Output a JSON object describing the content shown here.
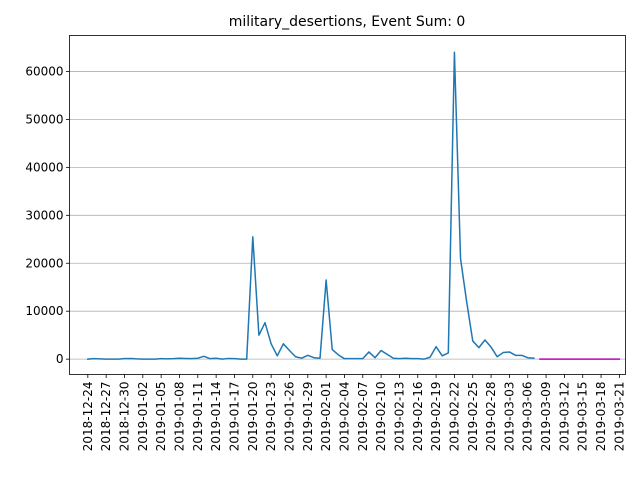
{
  "chart_data": {
    "type": "line",
    "title": "military_desertions, Event Sum: 0",
    "xlabel": "",
    "ylabel": "",
    "x_type": "date",
    "xlim": [
      "2018-12-24",
      "2019-03-21"
    ],
    "ylim": [
      -3200,
      67500
    ],
    "grid": "y",
    "x_ticks": [
      "2018-12-24",
      "2018-12-27",
      "2018-12-30",
      "2019-01-02",
      "2019-01-05",
      "2019-01-08",
      "2019-01-11",
      "2019-01-14",
      "2019-01-17",
      "2019-01-20",
      "2019-01-23",
      "2019-01-26",
      "2019-01-29",
      "2019-02-01",
      "2019-02-04",
      "2019-02-07",
      "2019-02-10",
      "2019-02-13",
      "2019-02-16",
      "2019-02-19",
      "2019-02-22",
      "2019-02-25",
      "2019-02-28",
      "2019-03-03",
      "2019-03-06",
      "2019-03-09",
      "2019-03-12",
      "2019-03-15",
      "2019-03-18",
      "2019-03-21"
    ],
    "y_ticks": [
      0,
      10000,
      20000,
      30000,
      40000,
      50000,
      60000
    ],
    "series": [
      {
        "color": "#1f77b4",
        "x": [
          "2018-12-24",
          "2018-12-25",
          "2018-12-26",
          "2018-12-27",
          "2018-12-28",
          "2018-12-29",
          "2018-12-30",
          "2018-12-31",
          "2019-01-01",
          "2019-01-02",
          "2019-01-03",
          "2019-01-04",
          "2019-01-05",
          "2019-01-06",
          "2019-01-07",
          "2019-01-08",
          "2019-01-09",
          "2019-01-10",
          "2019-01-11",
          "2019-01-12",
          "2019-01-13",
          "2019-01-14",
          "2019-01-15",
          "2019-01-16",
          "2019-01-17",
          "2019-01-18",
          "2019-01-19",
          "2019-01-20",
          "2019-01-21",
          "2019-01-22",
          "2019-01-23",
          "2019-01-24",
          "2019-01-25",
          "2019-01-26",
          "2019-01-27",
          "2019-01-28",
          "2019-01-29",
          "2019-01-30",
          "2019-01-31",
          "2019-02-01",
          "2019-02-02",
          "2019-02-03",
          "2019-02-04",
          "2019-02-05",
          "2019-02-06",
          "2019-02-07",
          "2019-02-08",
          "2019-02-09",
          "2019-02-10",
          "2019-02-11",
          "2019-02-12",
          "2019-02-13",
          "2019-02-14",
          "2019-02-15",
          "2019-02-16",
          "2019-02-17",
          "2019-02-18",
          "2019-02-19",
          "2019-02-20",
          "2019-02-21",
          "2019-02-22",
          "2019-02-23",
          "2019-02-24",
          "2019-02-25",
          "2019-02-26",
          "2019-02-27",
          "2019-02-28",
          "2019-03-01",
          "2019-03-02",
          "2019-03-03",
          "2019-03-04",
          "2019-03-05",
          "2019-03-06",
          "2019-03-07"
        ],
        "y": [
          0,
          100,
          50,
          0,
          0,
          0,
          100,
          150,
          50,
          0,
          0,
          0,
          100,
          50,
          100,
          200,
          150,
          100,
          200,
          600,
          100,
          200,
          0,
          150,
          100,
          0,
          0,
          25500,
          5000,
          7600,
          3200,
          700,
          3200,
          1800,
          500,
          200,
          800,
          300,
          200,
          16500,
          2000,
          900,
          100,
          100,
          100,
          100,
          1500,
          300,
          1800,
          1000,
          200,
          100,
          200,
          100,
          100,
          0,
          400,
          2600,
          700,
          1300,
          64000,
          21000,
          12000,
          3800,
          2400,
          4000,
          2500,
          500,
          1400,
          1500,
          800,
          800,
          300,
          200
        ]
      },
      {
        "color": "#bf00bf",
        "x": [
          "2019-03-08",
          "2019-03-21"
        ],
        "y": [
          0,
          0
        ]
      }
    ]
  }
}
